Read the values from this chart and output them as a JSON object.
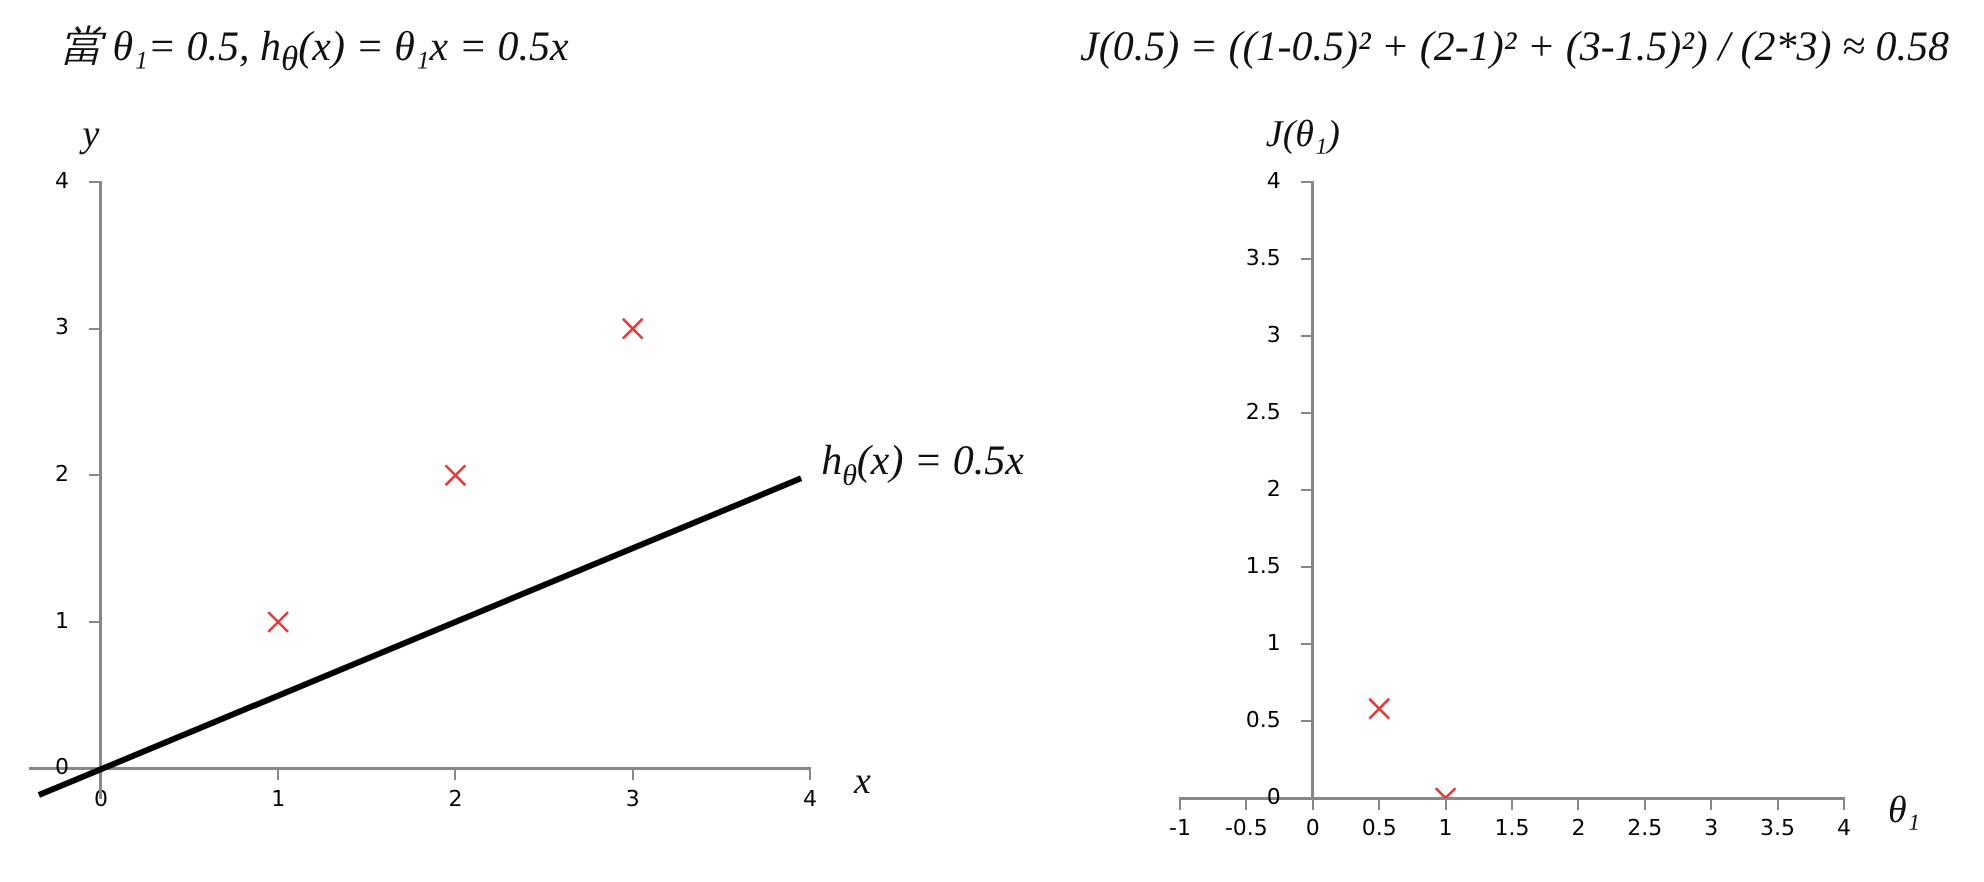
{
  "chart_data": [
    {
      "type": "scatter",
      "title": "當 θ₁= 0.5, h$_{θ}$(x) = θ₁x = 0.5x",
      "xlabel": "x",
      "ylabel": "y",
      "xlim": [
        -0.4,
        4
      ],
      "ylim": [
        -0.2,
        4
      ],
      "xticks": [
        0,
        1,
        2,
        3,
        4
      ],
      "yticks": [
        0,
        1,
        2,
        3,
        4
      ],
      "grid": false,
      "legend": false,
      "marker": "cross",
      "series": [
        {
          "type": "scatter",
          "color": "#e03c3c",
          "x": [
            1,
            2,
            3
          ],
          "values": [
            1,
            2,
            3
          ]
        },
        {
          "type": "line",
          "color": "#000000",
          "marker": "none",
          "x": [
            -0.35,
            3.95
          ],
          "values": [
            -0.18,
            1.98
          ]
        }
      ],
      "annotations": [
        {
          "text": "h$_{θ}$(x) = 0.5x",
          "x": 3.95,
          "y": 1.98
        }
      ]
    },
    {
      "type": "scatter",
      "title": "J(0.5) = ((1-0.5)² + (2-1)² + (3-1.5)²) / (2*3) ≈ 0.58",
      "xlabel": "θ₁",
      "ylabel": "J(θ₁)",
      "xlim": [
        -1,
        4
      ],
      "ylim": [
        0,
        4
      ],
      "xticks": [
        -1,
        -0.5,
        0,
        0.5,
        1,
        1.5,
        2,
        2.5,
        3,
        3.5,
        4
      ],
      "yticks": [
        0,
        0.5,
        1,
        1.5,
        2,
        2.5,
        3,
        3.5,
        4
      ],
      "grid": false,
      "legend": false,
      "marker": "cross",
      "series": [
        {
          "type": "scatter",
          "color": "#e03c3c",
          "x": [
            0.5,
            1
          ],
          "values": [
            0.58,
            0
          ]
        }
      ]
    }
  ]
}
